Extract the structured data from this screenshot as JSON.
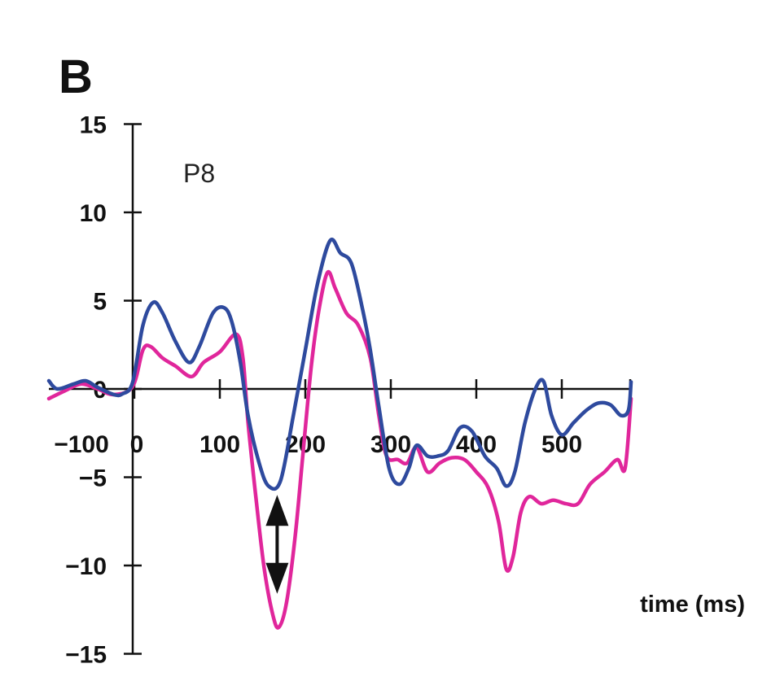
{
  "chart_data": {
    "type": "line",
    "panel_label": "B",
    "annotation": "P8",
    "xlabel": "time (ms)",
    "ylabel": "",
    "xlim": [
      -100,
      580
    ],
    "ylim": [
      -15,
      15
    ],
    "grid": false,
    "x_ticks": [
      -100,
      0,
      100,
      200,
      300,
      400,
      500
    ],
    "x_tick_labels": [
      "−100",
      "0",
      "100",
      "200",
      "300",
      "400",
      "500"
    ],
    "y_ticks": [
      15,
      10,
      5,
      0,
      -5,
      -10,
      -15
    ],
    "y_tick_labels": [
      "15",
      "10",
      "5",
      "0",
      "−5",
      "−10",
      "−15"
    ],
    "series": [
      {
        "name": "blue",
        "color": "#2e4a9e",
        "x": [
          -100,
          -90,
          -71,
          -57,
          -43,
          -24,
          -14,
          -2,
          10,
          22,
          33,
          48,
          64,
          76,
          92,
          105,
          114,
          124,
          133,
          146,
          157,
          171,
          186,
          200,
          214,
          229,
          241,
          254,
          267,
          276,
          286,
          298,
          310,
          321,
          330,
          343,
          355,
          367,
          381,
          395,
          410,
          424,
          435,
          445,
          457,
          470,
          479,
          488,
          500,
          514,
          529,
          543,
          557,
          569,
          578,
          581
        ],
        "y": [
          0.46,
          0,
          0.28,
          0.46,
          0.09,
          -0.32,
          -0.28,
          0.37,
          3.6,
          4.9,
          4.3,
          2.7,
          1.5,
          2.4,
          4.3,
          4.6,
          3.8,
          1.5,
          -1.5,
          -4.2,
          -5.5,
          -5.2,
          -1.5,
          2.2,
          5.9,
          8.4,
          7.7,
          7.1,
          4.5,
          2.2,
          -1.0,
          -4.5,
          -5.4,
          -4.5,
          -3.2,
          -3.8,
          -3.8,
          -3.5,
          -2.2,
          -2.4,
          -3.8,
          -4.5,
          -5.5,
          -4.7,
          -1.9,
          0.1,
          0.4,
          -1.5,
          -2.6,
          -1.9,
          -1.2,
          -0.8,
          -0.9,
          -1.5,
          -1.2,
          0.4
        ]
      },
      {
        "name": "magenta",
        "color": "#e0269b",
        "x": [
          -100,
          -81,
          -62,
          -43,
          -24,
          -2,
          10,
          19,
          33,
          48,
          67,
          81,
          100,
          119,
          127,
          133,
          143,
          152,
          162,
          169,
          178,
          188,
          197,
          207,
          216,
          226,
          235,
          248,
          262,
          276,
          286,
          295,
          308,
          319,
          330,
          343,
          357,
          371,
          386,
          400,
          414,
          426,
          435,
          443,
          452,
          462,
          476,
          490,
          505,
          519,
          533,
          550,
          565,
          574,
          581
        ],
        "y": [
          -0.55,
          -0.1,
          0.28,
          0,
          -0.32,
          0.14,
          2.2,
          2.4,
          1.75,
          1.3,
          0.7,
          1.5,
          2.1,
          3.1,
          1.75,
          -1.9,
          -6.5,
          -10.2,
          -12.8,
          -13.5,
          -12.1,
          -8.4,
          -3.8,
          1.3,
          4.5,
          6.6,
          5.7,
          4.3,
          3.6,
          1.75,
          -1.5,
          -3.8,
          -4.0,
          -4.2,
          -3.3,
          -4.7,
          -4.2,
          -3.9,
          -4.0,
          -4.7,
          -5.6,
          -7.5,
          -10.2,
          -9.5,
          -7.0,
          -6.1,
          -6.5,
          -6.3,
          -6.5,
          -6.5,
          -5.4,
          -4.7,
          -4.0,
          -4.5,
          -0.55
        ]
      }
    ],
    "double_arrow": {
      "x": 168,
      "y_from": -6.0,
      "y_to": -11.6,
      "color": "#111111"
    }
  }
}
